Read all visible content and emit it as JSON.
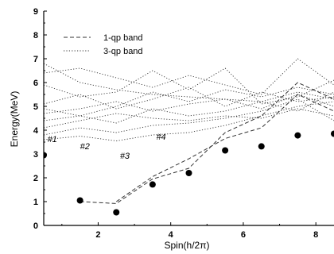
{
  "chart_data": {
    "type": "scatter",
    "xlabel": "Spin(h/2π)",
    "ylabel": "Energy(MeV)",
    "xlim": [
      0.5,
      8.5
    ],
    "ylim": [
      0,
      9
    ],
    "xticks": [
      2,
      4,
      6,
      8
    ],
    "yticks": [
      0,
      1,
      2,
      3,
      4,
      5,
      6,
      7,
      8,
      9
    ],
    "grid": false,
    "legend_position": "top-left",
    "legend": [
      {
        "label": "1-qp band",
        "style": "dashed"
      },
      {
        "label": "3-qp band",
        "style": "dotted"
      }
    ],
    "annotations": [
      {
        "text": "#1",
        "x": 0.6,
        "y": 3.5
      },
      {
        "text": "#2",
        "x": 1.5,
        "y": 3.2
      },
      {
        "text": "#3",
        "x": 2.6,
        "y": 2.8
      },
      {
        "text": "#4",
        "x": 3.6,
        "y": 3.6
      }
    ],
    "series": [
      {
        "type": "scatter",
        "x": [
          0.5,
          1.5,
          2.5,
          3.5,
          4.5,
          5.5,
          6.5,
          7.5,
          8.5
        ],
        "y": [
          2.95,
          1.05,
          0.55,
          1.72,
          2.2,
          3.15,
          3.32,
          3.78,
          3.85
        ]
      },
      {
        "type": "line",
        "style": "dashed",
        "x": [
          1.5,
          2.5,
          3.5,
          4.5,
          5.5,
          6.5,
          7.5,
          8.5
        ],
        "y": [
          1.0,
          0.92,
          1.95,
          2.4,
          3.9,
          4.6,
          6.0,
          5.3
        ]
      },
      {
        "type": "line",
        "style": "dashed",
        "x": [
          2.5,
          3.5,
          4.5,
          5.5,
          6.5,
          7.5,
          8.5
        ],
        "y": [
          1.0,
          2.05,
          2.8,
          3.65,
          4.1,
          5.5,
          4.8
        ]
      },
      {
        "type": "line",
        "style": "dotted",
        "x": [
          0.5,
          1.5,
          2.5,
          3.5,
          4.5,
          5.5,
          6.5,
          7.5,
          8.5
        ],
        "y": [
          6.8,
          6.0,
          5.7,
          5.5,
          5.4,
          5.3,
          5.2,
          5.6,
          5.3
        ]
      },
      {
        "type": "line",
        "style": "dotted",
        "x": [
          0.5,
          1.5,
          2.5,
          3.5,
          4.5,
          5.5,
          6.5,
          7.5,
          8.5
        ],
        "y": [
          6.4,
          6.6,
          6.2,
          5.8,
          6.3,
          5.9,
          5.5,
          7.0,
          5.9
        ]
      },
      {
        "type": "line",
        "style": "dotted",
        "x": [
          0.5,
          1.5,
          2.5,
          3.5,
          4.5,
          5.5,
          6.5,
          7.5,
          8.5
        ],
        "y": [
          5.9,
          5.4,
          5.6,
          6.5,
          5.7,
          6.6,
          5.1,
          5.4,
          6.1
        ]
      },
      {
        "type": "line",
        "style": "dotted",
        "x": [
          0.5,
          1.5,
          2.5,
          3.5,
          4.5,
          5.5,
          6.5,
          7.5,
          8.5
        ],
        "y": [
          5.1,
          5.5,
          4.9,
          5.3,
          5.8,
          5.0,
          5.6,
          5.2,
          5.4
        ]
      },
      {
        "type": "line",
        "style": "dotted",
        "x": [
          0.5,
          1.5,
          2.5,
          3.5,
          4.5,
          5.5,
          6.5,
          7.5,
          8.5
        ],
        "y": [
          4.7,
          4.9,
          5.2,
          4.8,
          5.1,
          5.3,
          4.9,
          5.5,
          5.0
        ]
      },
      {
        "type": "line",
        "style": "dotted",
        "x": [
          0.5,
          1.5,
          2.5,
          3.5,
          4.5,
          5.5,
          6.5,
          7.5,
          8.5
        ],
        "y": [
          4.4,
          4.6,
          4.3,
          4.9,
          4.6,
          4.8,
          5.2,
          4.8,
          5.6
        ]
      },
      {
        "type": "line",
        "style": "dotted",
        "x": [
          0.5,
          1.5,
          2.5,
          3.5,
          4.5,
          5.5,
          6.5,
          7.5,
          8.5
        ],
        "y": [
          4.1,
          4.4,
          4.7,
          4.5,
          4.4,
          4.6,
          4.5,
          4.9,
          4.6
        ]
      },
      {
        "type": "line",
        "style": "dotted",
        "x": [
          0.5,
          1.5,
          2.5,
          3.5,
          4.5,
          5.5,
          6.5,
          7.5,
          8.5
        ],
        "y": [
          3.8,
          4.1,
          3.9,
          4.2,
          4.3,
          4.5,
          4.8,
          5.3,
          4.4
        ]
      },
      {
        "type": "line",
        "style": "dotted",
        "x": [
          0.5,
          1.5,
          2.5,
          3.5,
          4.5,
          5.5,
          6.5,
          7.5,
          8.5
        ],
        "y": [
          3.6,
          3.75,
          3.55,
          3.8,
          3.9,
          4.2,
          4.6,
          5.0,
          5.2
        ]
      },
      {
        "type": "line",
        "style": "dotted",
        "x": [
          0.5,
          1.5,
          2.5,
          3.5,
          4.5,
          5.5,
          6.5,
          7.5,
          8.5
        ],
        "y": [
          4.9,
          4.6,
          5.0,
          5.6,
          5.2,
          5.7,
          5.4,
          5.8,
          5.5
        ]
      }
    ]
  }
}
